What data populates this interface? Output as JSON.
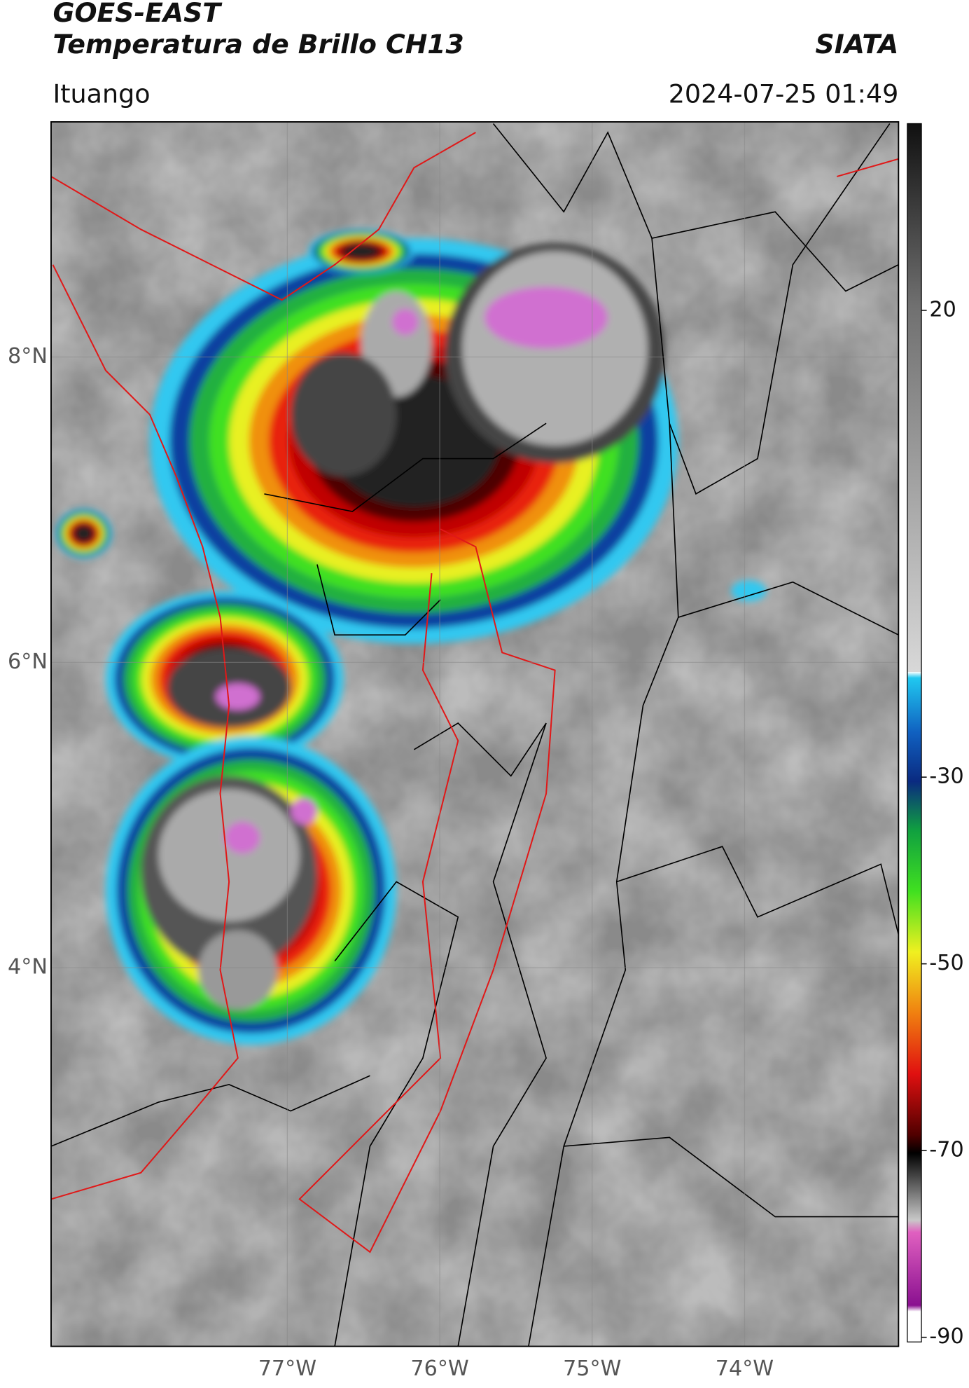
{
  "header": {
    "title_line1": "GOES-EAST",
    "title_line2": "Temperatura de Brillo CH13",
    "source": "SIATA",
    "location": "Ituango",
    "timestamp": "2024-07-25 01:49"
  },
  "map": {
    "lonlim": [
      -78.55,
      -72.99
    ],
    "latlim": [
      1.52,
      9.54
    ],
    "lat_ticks": [
      {
        "value": 8,
        "label": "8°N"
      },
      {
        "value": 6,
        "label": "6°N"
      },
      {
        "value": 4,
        "label": "4°N"
      }
    ],
    "lon_ticks": [
      {
        "value": -77,
        "label": "77°W"
      },
      {
        "value": -76,
        "label": "76°W"
      },
      {
        "value": -75,
        "label": "75°W"
      },
      {
        "value": -74,
        "label": "74°W"
      }
    ],
    "grid": true
  },
  "colorbar": {
    "range": [
      -90.5,
      40
    ],
    "ticks": [
      20,
      -30,
      -50,
      -70,
      -90
    ]
  }
}
